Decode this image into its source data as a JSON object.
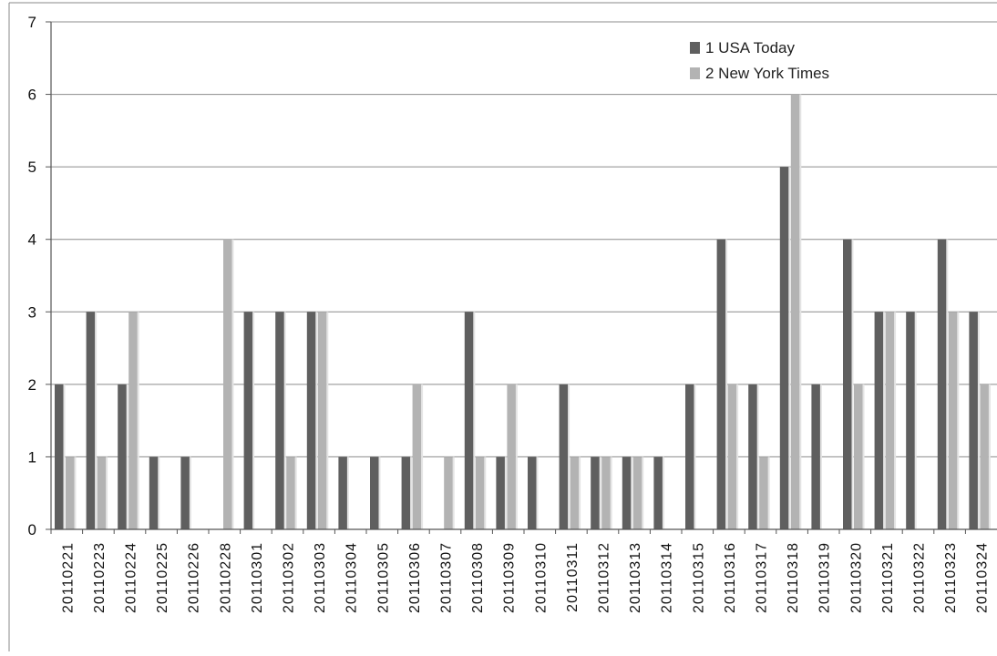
{
  "chart_data": {
    "type": "bar",
    "title": "",
    "xlabel": "",
    "ylabel": "",
    "ylim": [
      0,
      7
    ],
    "yticks": [
      "0",
      "1",
      "2",
      "3",
      "4",
      "5",
      "6",
      "7"
    ],
    "grid": true,
    "legend_position": "top-right",
    "categories": [
      "20110221",
      "20110223",
      "20110224",
      "20110225",
      "20110226",
      "20110228",
      "20110301",
      "20110302",
      "20110303",
      "20110304",
      "20110305",
      "20110306",
      "20110307",
      "20110308",
      "20110309",
      "20110310",
      "20110311",
      "20110312",
      "20110313",
      "20110314",
      "20110315",
      "20110316",
      "20110317",
      "20110318",
      "20110319",
      "20110320",
      "20110321",
      "20110322",
      "20110323",
      "20110324"
    ],
    "series": [
      {
        "name": "1 USA Today",
        "color": "#5f5f5f",
        "values": [
          2,
          3,
          2,
          1,
          1,
          0,
          3,
          3,
          3,
          1,
          1,
          1,
          0,
          3,
          1,
          1,
          2,
          1,
          1,
          1,
          2,
          4,
          2,
          5,
          2,
          4,
          3,
          3,
          4,
          3
        ]
      },
      {
        "name": "2 New York Times",
        "color": "#b3b3b3",
        "values": [
          1,
          1,
          3,
          0,
          0,
          4,
          0,
          1,
          3,
          0,
          0,
          2,
          1,
          1,
          2,
          0,
          1,
          1,
          1,
          0,
          0,
          2,
          1,
          6,
          0,
          2,
          3,
          0,
          3,
          2
        ]
      }
    ]
  }
}
